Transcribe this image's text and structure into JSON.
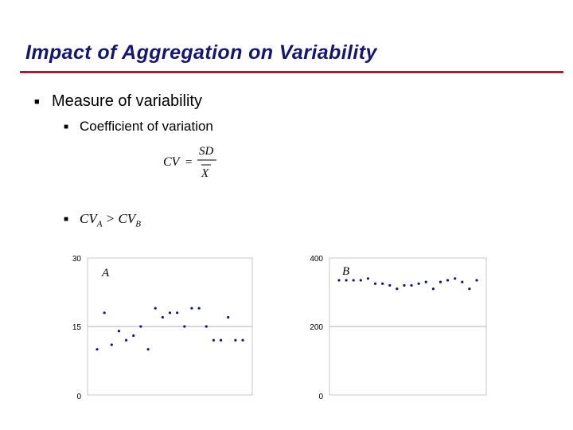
{
  "slide": {
    "title": "Impact of Aggregation on Variability",
    "accent_color": "#a0203a",
    "title_color": "#16166e"
  },
  "bullets": {
    "level1": "Measure of variability",
    "level2a": "Coefficient of variation",
    "marker_icon": "square-bullet-icon"
  },
  "formula": {
    "lhs": "CV",
    "equals": "=",
    "numerator": "SD",
    "denominator": "X"
  },
  "inequality": {
    "cv_a": "CV",
    "sub_a": "A",
    "gt": ">",
    "cv_b": "CV",
    "sub_b": "B"
  },
  "chart_data": [
    {
      "type": "scatter",
      "panel_label": "A",
      "ylim": [
        0,
        30
      ],
      "yticks": [
        "30",
        "15",
        "0"
      ],
      "grid": "horizontal line at 15",
      "x": [
        1,
        2,
        3,
        4,
        5,
        6,
        7,
        8,
        9,
        10,
        11,
        12,
        13,
        14,
        15,
        16,
        17,
        18,
        19,
        20,
        21
      ],
      "y": [
        10,
        18,
        11,
        14,
        12,
        13,
        15,
        10,
        19,
        17,
        18,
        18,
        15,
        19,
        19,
        15,
        12,
        12,
        17,
        12,
        12
      ]
    },
    {
      "type": "scatter",
      "panel_label": "B",
      "ylim": [
        0,
        400
      ],
      "yticks": [
        "400",
        "200",
        "0"
      ],
      "grid": "horizontal line at 200",
      "x": [
        1,
        2,
        3,
        4,
        5,
        6,
        7,
        8,
        9,
        10,
        11,
        12,
        13,
        14,
        15,
        16,
        17,
        18,
        19,
        20
      ],
      "y": [
        335,
        335,
        335,
        335,
        340,
        325,
        325,
        320,
        310,
        320,
        320,
        325,
        330,
        310,
        330,
        335,
        340,
        330,
        310,
        335
      ]
    }
  ]
}
